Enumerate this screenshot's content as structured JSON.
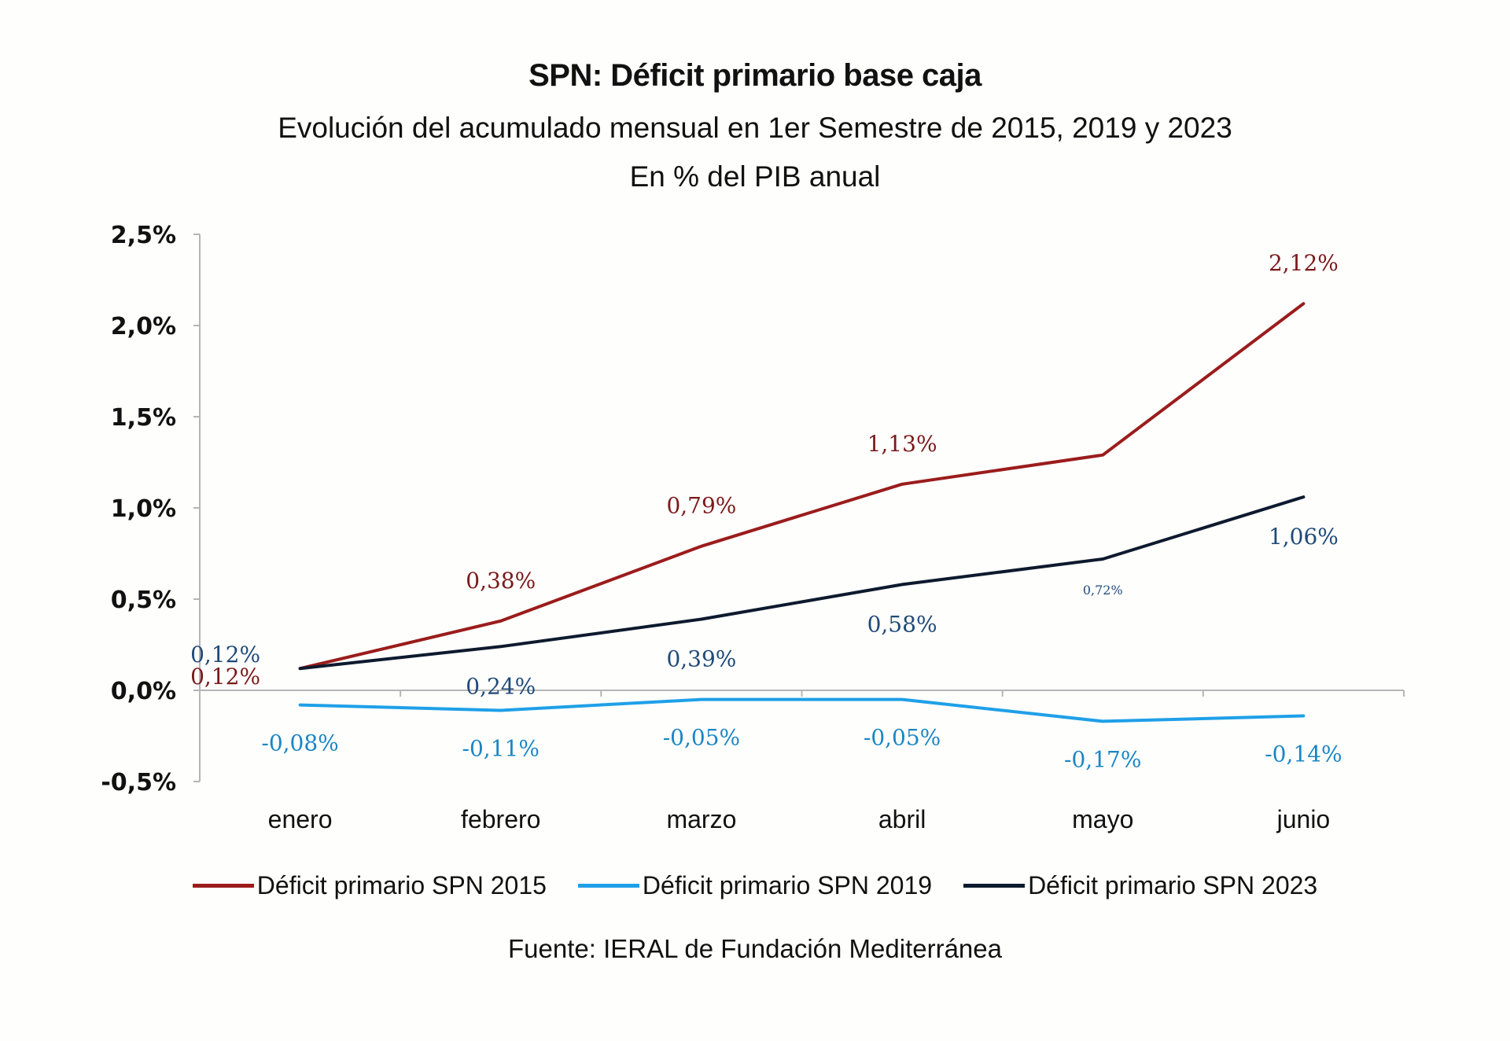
{
  "chart_data": {
    "type": "line",
    "title": "SPN: Déficit primario base caja",
    "subtitle": "Evolución del acumulado mensual en 1er Semestre de 2015, 2019 y 2023",
    "subtitle2": "En % del PIB anual",
    "xlabel": "",
    "ylabel": "",
    "categories": [
      "enero",
      "febrero",
      "marzo",
      "abril",
      "mayo",
      "junio"
    ],
    "ylim": [
      -0.5,
      2.5
    ],
    "yticks": [
      -0.5,
      0.0,
      0.5,
      1.0,
      1.5,
      2.0,
      2.5
    ],
    "ytick_labels": [
      "-0,5%",
      "0,0%",
      "0,5%",
      "1,0%",
      "1,5%",
      "2,0%",
      "2,5%"
    ],
    "grid": false,
    "legend_position": "bottom",
    "series": [
      {
        "name": "Déficit primario SPN 2015",
        "color": "#9b1c1c",
        "label_color": "#7a1a1a",
        "values": [
          0.12,
          0.38,
          0.79,
          1.13,
          1.29,
          2.12
        ],
        "labels": [
          "0,12%",
          "0,38%",
          "0,79%",
          "1,13%",
          "",
          "2,12%"
        ]
      },
      {
        "name": "Déficit primario SPN 2019",
        "color": "#1fa0e8",
        "label_color": "#1a86c4",
        "values": [
          -0.08,
          -0.11,
          -0.05,
          -0.05,
          -0.17,
          -0.14
        ],
        "labels": [
          "-0,08%",
          "-0,11%",
          "-0,05%",
          "-0,05%",
          "-0,17%",
          "-0,14%"
        ]
      },
      {
        "name": "Déficit primario SPN 2023",
        "color": "#0d1a2e",
        "label_color": "#1f4a78",
        "values": [
          0.12,
          0.24,
          0.39,
          0.58,
          0.72,
          1.06
        ],
        "labels": [
          "0,12%",
          "0,24%",
          "0,39%",
          "0,58%",
          "0,72%",
          "1,06%"
        ]
      }
    ],
    "source": "Fuente: IERAL de Fundación Mediterránea"
  }
}
